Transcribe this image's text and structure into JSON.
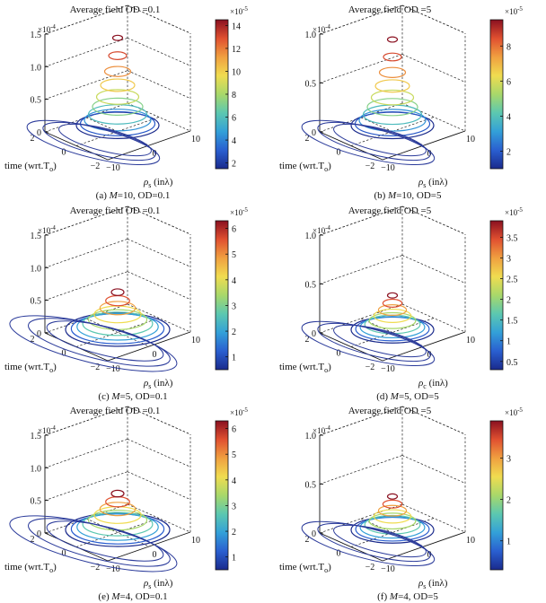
{
  "figure": {
    "colormap": [
      "#1a2a8c",
      "#2a5fd0",
      "#33a0d8",
      "#5cc8b0",
      "#a8d86a",
      "#f0dc50",
      "#f0a040",
      "#e05030",
      "#8a1020"
    ]
  },
  "chart_data": [
    {
      "type": "3d-contour",
      "title": "Average field OD =0.1",
      "caption": {
        "prefix": "(a) ",
        "var": "M",
        "suffix": "=10, OD=0.1"
      },
      "z_scale_label": "×10",
      "z_scale_exp": "-4",
      "z_ticks": [
        "0",
        "0.5",
        "1.0",
        "1.5"
      ],
      "zlim": [
        0,
        1.5
      ],
      "peak_z": 1.45,
      "t_ticks": [
        "2",
        "0",
        "−2"
      ],
      "rho_ticks": [
        "−10",
        "0",
        "10"
      ],
      "xlabel": "time (wrt.T",
      "xlabel_sub": "o",
      "ylabel": "ρ",
      "ylabel_sub": "s",
      "ylabel_unit": " (inλ)",
      "rings": 10,
      "colorbar": {
        "exp_label": "×10",
        "exp": "-5",
        "ticks": [
          "2",
          "4",
          "6",
          "8",
          "10",
          "12",
          "14"
        ],
        "range": [
          1.5,
          14.5
        ]
      }
    },
    {
      "type": "3d-contour",
      "title": "Average field OD =5",
      "caption": {
        "prefix": "(b) ",
        "var": "M",
        "suffix": "=10, OD=5"
      },
      "z_scale_label": "×10",
      "z_scale_exp": "-4",
      "z_ticks": [
        "0",
        "0.5",
        "1.0"
      ],
      "zlim": [
        0,
        1.0
      ],
      "peak_z": 0.95,
      "t_ticks": [
        "2",
        "0",
        "−2"
      ],
      "rho_ticks": [
        "−10",
        "0",
        "10"
      ],
      "xlabel": "time (wrt.T",
      "xlabel_sub": "o",
      "ylabel": "ρ",
      "ylabel_sub": "s",
      "ylabel_unit": " (inλ)",
      "rings": 10,
      "colorbar": {
        "exp_label": "×10",
        "exp": "-5",
        "ticks": [
          "2",
          "4",
          "6",
          "8"
        ],
        "range": [
          1.0,
          9.5
        ]
      }
    },
    {
      "type": "3d-contour",
      "title": "Average field OD =0.1",
      "caption": {
        "prefix": "(c) ",
        "var": "M",
        "suffix": "=5, OD=0.1"
      },
      "z_scale_label": "×10",
      "z_scale_exp": "-4",
      "z_ticks": [
        "0",
        "0.5",
        "1.0",
        "1.5"
      ],
      "zlim": [
        0,
        1.5
      ],
      "peak_z": 0.62,
      "t_ticks": [
        "2",
        "0",
        "−2"
      ],
      "rho_ticks": [
        "−10",
        "0",
        "10"
      ],
      "xlabel": "time (wrt.T",
      "xlabel_sub": "o",
      "ylabel": "ρ",
      "ylabel_sub": "s",
      "ylabel_unit": " (inλ)",
      "rings": 9,
      "colorbar": {
        "exp_label": "×10",
        "exp": "-5",
        "ticks": [
          "1",
          "2",
          "3",
          "4",
          "5",
          "6"
        ],
        "range": [
          0.5,
          6.3
        ]
      }
    },
    {
      "type": "3d-contour",
      "title": "Average field OD =5",
      "caption": {
        "prefix": "(d) ",
        "var": "M",
        "suffix": "=5, OD=5"
      },
      "z_scale_label": "×10",
      "z_scale_exp": "-4",
      "z_ticks": [
        "0",
        "0.5",
        "1.0"
      ],
      "zlim": [
        0,
        1.0
      ],
      "peak_z": 0.38,
      "t_ticks": [
        "2",
        "0",
        "−2"
      ],
      "rho_ticks": [
        "−10",
        "0",
        "10"
      ],
      "xlabel": "time (wrt.T",
      "xlabel_sub": "o",
      "ylabel": "ρ",
      "ylabel_sub": "c",
      "ylabel_unit": " (inλ)",
      "rings": 9,
      "colorbar": {
        "exp_label": "×10",
        "exp": "-5",
        "ticks": [
          "0.5",
          "1",
          "1.5",
          "2",
          "2.5",
          "3",
          "3.5"
        ],
        "range": [
          0.3,
          3.9
        ]
      }
    },
    {
      "type": "3d-contour",
      "title": "Average field OD =0.1",
      "caption": {
        "prefix": "(e) ",
        "var": "M",
        "suffix": "=4, OD=0.1"
      },
      "z_scale_label": "×10",
      "z_scale_exp": "-4",
      "z_ticks": [
        "0",
        "0.5",
        "1.0",
        "1.5"
      ],
      "zlim": [
        0,
        1.5
      ],
      "peak_z": 0.6,
      "t_ticks": [
        "2",
        "0",
        "−2"
      ],
      "rho_ticks": [
        "−10",
        "0",
        "10"
      ],
      "xlabel": "time (wrt.T",
      "xlabel_sub": "o",
      "ylabel": "ρ",
      "ylabel_sub": "s",
      "ylabel_unit": " (inλ)",
      "rings": 9,
      "colorbar": {
        "exp_label": "×10",
        "exp": "-5",
        "ticks": [
          "1",
          "2",
          "3",
          "4",
          "5",
          "6"
        ],
        "range": [
          0.5,
          6.3
        ]
      }
    },
    {
      "type": "3d-contour",
      "title": "Average field OD =5",
      "caption": {
        "prefix": "(f) ",
        "var": "M",
        "suffix": "=4, OD=5"
      },
      "z_scale_label": "×10",
      "z_scale_exp": "-4",
      "z_ticks": [
        "0",
        "0.5",
        "1.0"
      ],
      "zlim": [
        0,
        1.0
      ],
      "peak_z": 0.37,
      "t_ticks": [
        "2",
        "0",
        "−2"
      ],
      "rho_ticks": [
        "−10",
        "0",
        "10"
      ],
      "xlabel": "time (wrt.T",
      "xlabel_sub": "o",
      "ylabel": "ρ",
      "ylabel_sub": "s",
      "ylabel_unit": " (inλ)",
      "rings": 9,
      "colorbar": {
        "exp_label": "×10",
        "exp": "-5",
        "ticks": [
          "1",
          "2",
          "3"
        ],
        "range": [
          0.3,
          3.9
        ]
      }
    }
  ]
}
